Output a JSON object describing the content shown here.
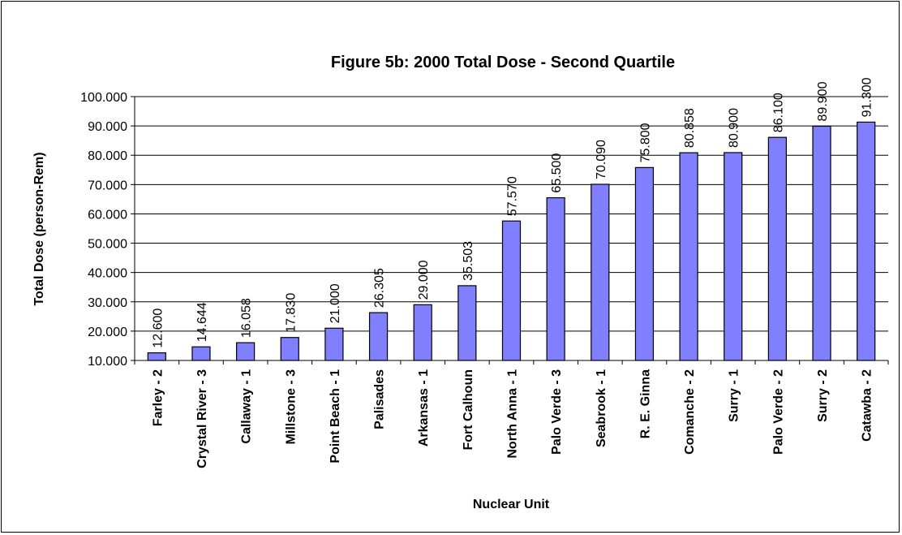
{
  "chart_data": {
    "type": "bar",
    "title": "Figure 5b: 2000 Total Dose - Second Quartile",
    "x_label": "Nuclear Unit",
    "y_label": "Total Dose (person-Rem)",
    "categories": [
      "Farley - 2",
      "Crystal River - 3",
      "Callaway - 1",
      "Millstone - 3",
      "Point Beach - 1",
      "Palisades",
      "Arkansas - 1",
      "Fort Calhoun",
      "North Anna - 1",
      "Palo Verde - 3",
      "Seabrook - 1",
      "R. E. Ginna",
      "Comanche - 2",
      "Surry - 1",
      "Palo Verde - 2",
      "Surry - 2",
      "Catawba - 2"
    ],
    "values": [
      12.6,
      14.644,
      16.058,
      17.83,
      21,
      26.305,
      29,
      35.503,
      57.57,
      65.5,
      70.09,
      75.8,
      80.858,
      80.9,
      86.1,
      89.9,
      91.3
    ],
    "value_labels": [
      "12.600",
      "14.644",
      "16.058",
      "17.830",
      "21.000",
      "26.305",
      "29.000",
      "35.503",
      "57.570",
      "65.500",
      "70.090",
      "75.800",
      "80.858",
      "80.900",
      "86.100",
      "89.900",
      "91.300"
    ],
    "color": "#8080ff",
    "ylim": [
      10,
      100
    ],
    "yticks": [
      {
        "value": 10,
        "label": "10.000"
      },
      {
        "value": 20,
        "label": "20.000"
      },
      {
        "value": 30,
        "label": "30.000"
      },
      {
        "value": 40,
        "label": "40.000"
      },
      {
        "value": 50,
        "label": "50.000"
      },
      {
        "value": 60,
        "label": "60.000"
      },
      {
        "value": 70,
        "label": "70.000"
      },
      {
        "value": 80,
        "label": "80.000"
      },
      {
        "value": 90,
        "label": "90.000"
      },
      {
        "value": 100,
        "label": "100.000"
      }
    ],
    "grid": true
  }
}
